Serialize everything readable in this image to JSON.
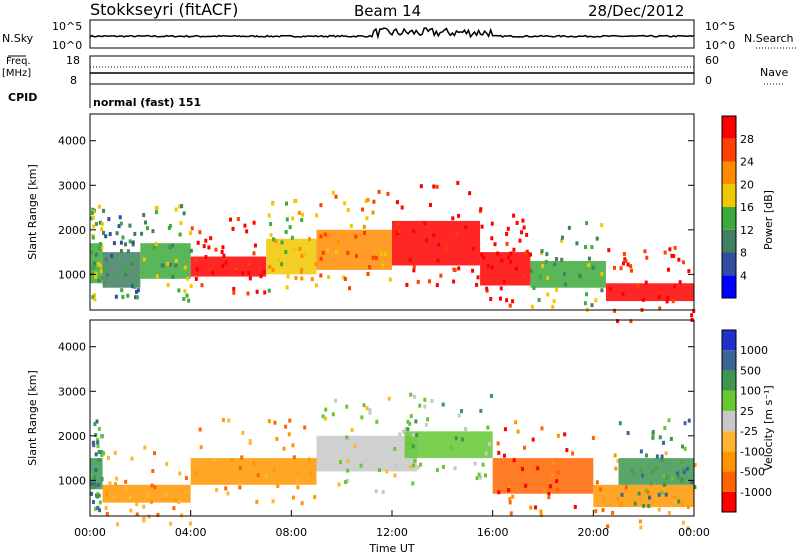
{
  "header": {
    "station": "Stokkseyri (fitACF)",
    "beam": "Beam 14",
    "date": "28/Dec/2012"
  },
  "strips": {
    "nsky": {
      "label": "N.Sky",
      "left_ticks": [
        "10^5",
        "10^0"
      ],
      "right_ticks": [
        "10^5",
        "10^0"
      ],
      "right_label": "N.Search"
    },
    "freq": {
      "label_top": "Freq.",
      "label_unit": "[MHz]",
      "left_ticks": [
        "18",
        "8"
      ],
      "right_ticks": [
        "60",
        "0"
      ],
      "right_label": "Nave"
    },
    "cpid": {
      "label": "CPID",
      "value": "normal (fast) 151"
    }
  },
  "colors": {
    "power": [
      "#0000ff",
      "#2e4fa0",
      "#408060",
      "#3caa3c",
      "#f0c800",
      "#ff8c00",
      "#ff4000",
      "#ff0000"
    ],
    "velocity": [
      "#ff0000",
      "#ff6400",
      "#ff9600",
      "#ffb432",
      "#c8c8c8",
      "#64c832",
      "#3c9650",
      "#3c6496",
      "#1e32c8"
    ]
  },
  "chart_data": [
    {
      "type": "heatmap",
      "name": "power",
      "ylabel": "Slant Range [km]",
      "yticks": [
        "1000",
        "2000",
        "3000",
        "4000"
      ],
      "ylim": [
        200,
        4600
      ],
      "colorbar_label": "Power [dB]",
      "colorbar_ticks": [
        "4",
        "8",
        "12",
        "16",
        "20",
        "24",
        "28"
      ],
      "colorbar_range": [
        0,
        32
      ],
      "bands": [
        {
          "x": [
            0,
            0.5
          ],
          "y": [
            800,
            1700
          ],
          "level": 3
        },
        {
          "x": [
            0.5,
            2
          ],
          "y": [
            700,
            1500
          ],
          "level": 2
        },
        {
          "x": [
            2,
            4
          ],
          "y": [
            900,
            1700
          ],
          "level": 3
        },
        {
          "x": [
            4,
            7
          ],
          "y": [
            950,
            1400
          ],
          "level": 7
        },
        {
          "x": [
            7,
            9
          ],
          "y": [
            1000,
            1800
          ],
          "level": 4
        },
        {
          "x": [
            9,
            12
          ],
          "y": [
            1100,
            2000
          ],
          "level": 5
        },
        {
          "x": [
            12,
            15.5
          ],
          "y": [
            1200,
            2200
          ],
          "level": 7
        },
        {
          "x": [
            15.5,
            17.5
          ],
          "y": [
            750,
            1500
          ],
          "level": 7
        },
        {
          "x": [
            17.5,
            20.5
          ],
          "y": [
            700,
            1300
          ],
          "level": 3
        },
        {
          "x": [
            20.5,
            24
          ],
          "y": [
            400,
            800
          ],
          "level": 7
        }
      ]
    },
    {
      "type": "heatmap",
      "name": "velocity",
      "ylabel": "Slant Range [km]",
      "yticks": [
        "1000",
        "2000",
        "3000",
        "4000"
      ],
      "ylim": [
        200,
        4600
      ],
      "colorbar_label": "Velocity [m s⁻¹]",
      "colorbar_ticks": [
        "-1000",
        "-500",
        "-100",
        "-25",
        "25",
        "100",
        "500",
        "1000"
      ],
      "xlabel": "Time UT",
      "xticks": [
        "00:00",
        "04:00",
        "08:00",
        "12:00",
        "16:00",
        "20:00",
        "00:00"
      ],
      "xlim": [
        0,
        24
      ],
      "bands": [
        {
          "x": [
            0,
            0.5
          ],
          "y": [
            800,
            1500
          ],
          "level": 6
        },
        {
          "x": [
            0.5,
            4
          ],
          "y": [
            500,
            900
          ],
          "level": 2
        },
        {
          "x": [
            4,
            9
          ],
          "y": [
            900,
            1500
          ],
          "level": 2
        },
        {
          "x": [
            9,
            13
          ],
          "y": [
            1200,
            2000
          ],
          "level": 4
        },
        {
          "x": [
            12.5,
            16
          ],
          "y": [
            1500,
            2100
          ],
          "level": 5
        },
        {
          "x": [
            16,
            20
          ],
          "y": [
            700,
            1500
          ],
          "level": 1
        },
        {
          "x": [
            20,
            24
          ],
          "y": [
            400,
            900
          ],
          "level": 2
        },
        {
          "x": [
            21,
            24
          ],
          "y": [
            900,
            1500
          ],
          "level": 6
        }
      ]
    }
  ]
}
